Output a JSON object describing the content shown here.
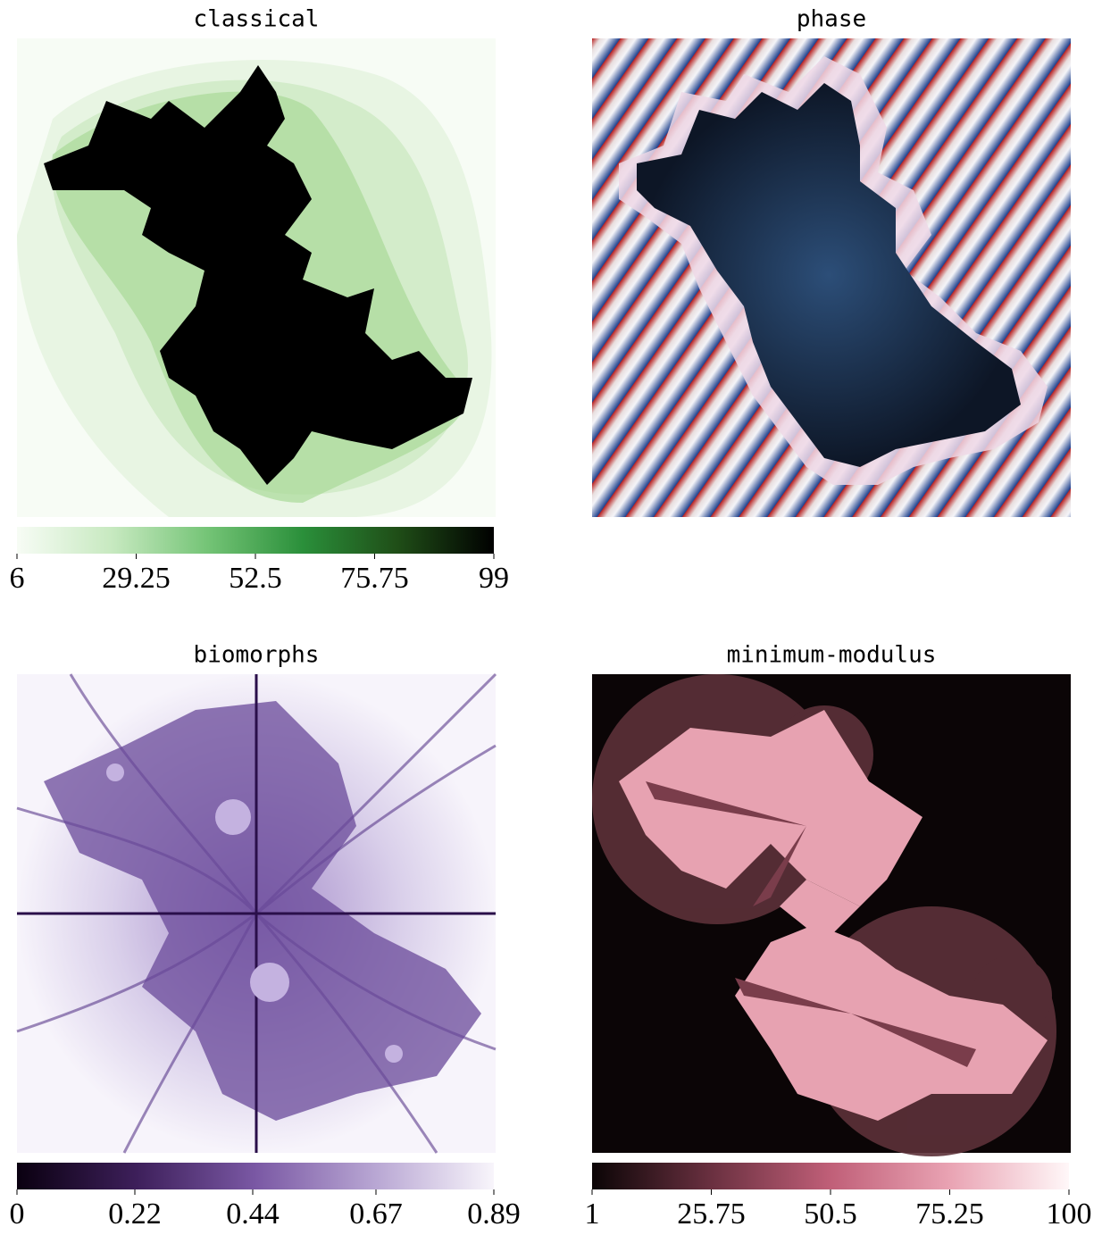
{
  "chart_data": [
    {
      "type": "image",
      "title": "classical",
      "colormap": [
        "#f7fcf5",
        "#c7e9c0",
        "#74c476",
        "#2a8f3a",
        "#1f4d17",
        "#000000"
      ],
      "clim": [
        6,
        99
      ],
      "cticks": [
        6,
        29.25,
        52.5,
        75.75,
        99
      ]
    },
    {
      "type": "image",
      "title": "phase"
    },
    {
      "type": "image",
      "title": "biomorphs",
      "colormap": [
        "#0a0010",
        "#3d1f5a",
        "#7a58a4",
        "#b8a6d3",
        "#f8f5fb"
      ],
      "clim": [
        0,
        0.89
      ],
      "cticks": [
        0,
        0.22,
        0.44,
        0.67,
        0.89
      ]
    },
    {
      "type": "image",
      "title": "minimum-modulus",
      "colormap": [
        "#0b0506",
        "#6a3040",
        "#c05f78",
        "#e9a3b3",
        "#fff7f8"
      ],
      "clim": [
        1,
        100
      ],
      "cticks": [
        1,
        25.75,
        50.5,
        75.25,
        100
      ]
    }
  ]
}
